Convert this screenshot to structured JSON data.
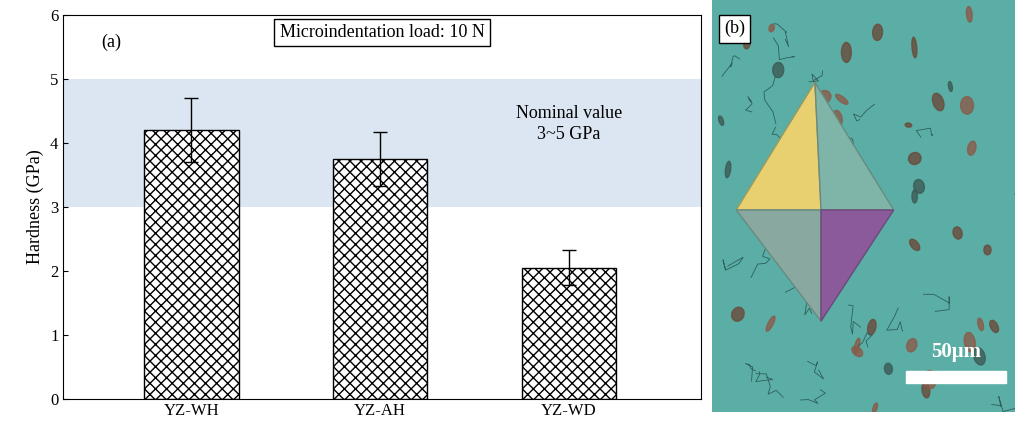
{
  "chart_data": {
    "type": "bar",
    "categories": [
      "YZ-WH",
      "YZ-AH",
      "YZ-WD"
    ],
    "values": [
      4.2,
      3.75,
      2.05
    ],
    "errors": [
      0.5,
      0.42,
      0.27
    ],
    "y_label": "Hardness (GPa)",
    "ylim": [
      0,
      6
    ],
    "yticks": [
      0,
      1,
      2,
      3,
      4,
      5,
      6
    ],
    "nominal_range": [
      3,
      5
    ],
    "nominal_color": "#dce6f2",
    "color": "#ffffff",
    "panel_label": "(a)",
    "load_label": "Microindentation load: 10 N",
    "nominal_label": "Nominal value\n3~5 GPa"
  },
  "image": {
    "panel_label": "(b)",
    "scale_bar_label": "50μm"
  }
}
